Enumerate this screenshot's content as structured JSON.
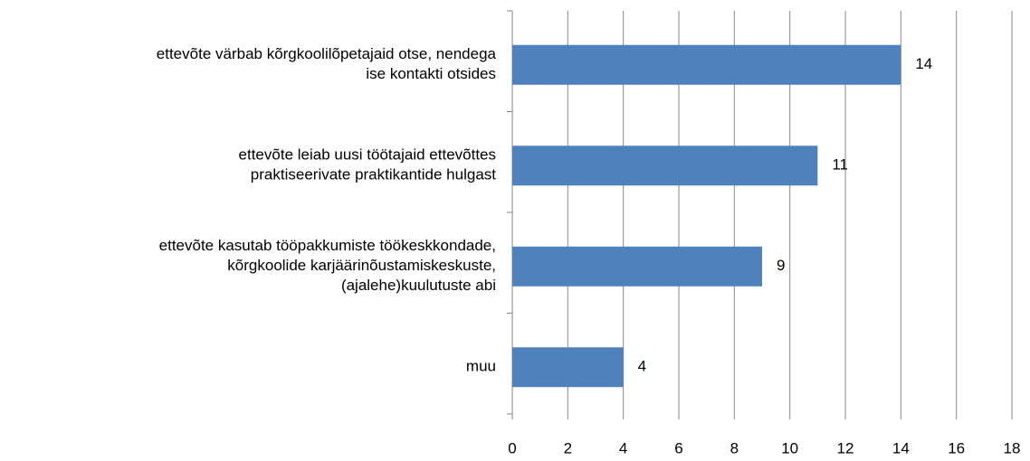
{
  "chart_data": {
    "type": "bar",
    "orientation": "horizontal",
    "categories": [
      [
        "ettevõte värbab kõrgkoolilõpetajaid otse, nendega",
        "ise kontakti otsides"
      ],
      [
        "ettevõte leiab uusi töötajaid ettevõttes",
        "praktiseerivate praktikantide hulgast"
      ],
      [
        "ettevõte kasutab tööpakkumiste töökeskkondade,",
        "kõrgkoolide karjäärinõustamiskeskuste,",
        "(ajalehe)kuulutuste abi"
      ],
      [
        "muu"
      ]
    ],
    "values": [
      14,
      11,
      9,
      4
    ],
    "color": "#4f81bd",
    "xlim": [
      0,
      18
    ],
    "xticks": [
      0,
      2,
      4,
      6,
      8,
      10,
      12,
      14,
      16,
      18
    ],
    "grid": true
  }
}
